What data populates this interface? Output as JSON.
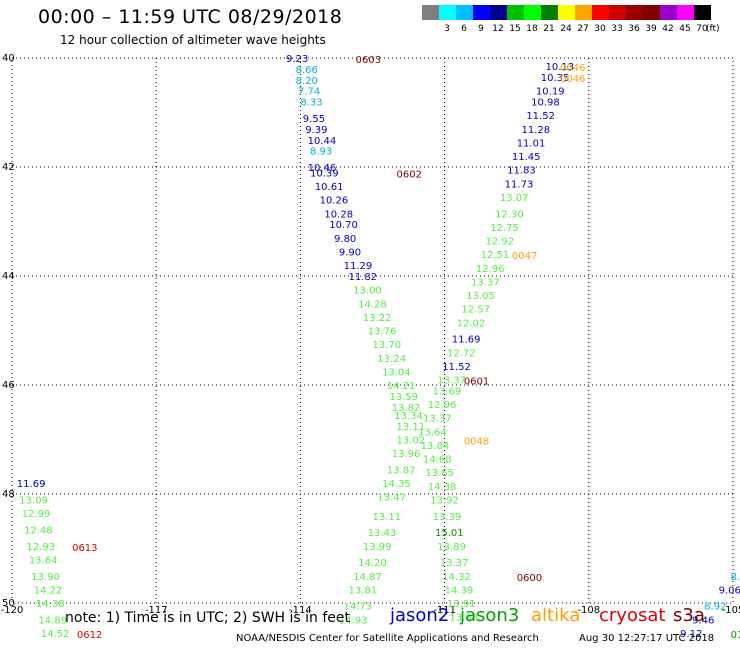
{
  "header": {
    "title": "00:00 – 11:59 UTC 08/29/2018",
    "subtitle": "12 hour collection of altimeter wave heights"
  },
  "scale": {
    "unit": "(ft)",
    "swatches": [
      {
        "label": "",
        "color": "#7f7f7f"
      },
      {
        "label": "3",
        "color": "#00ffff"
      },
      {
        "label": "6",
        "color": "#00bfff"
      },
      {
        "label": "9",
        "color": "#0000ff"
      },
      {
        "label": "12",
        "color": "#00008b"
      },
      {
        "label": "15",
        "color": "#00c000"
      },
      {
        "label": "18",
        "color": "#00ff00"
      },
      {
        "label": "21",
        "color": "#008000"
      },
      {
        "label": "24",
        "color": "#ffff00"
      },
      {
        "label": "27",
        "color": "#ffa500"
      },
      {
        "label": "30",
        "color": "#ff0000"
      },
      {
        "label": "33",
        "color": "#cc0000"
      },
      {
        "label": "36",
        "color": "#990000"
      },
      {
        "label": "39",
        "color": "#7f0000"
      },
      {
        "label": "42",
        "color": "#9900cc"
      },
      {
        "label": "45",
        "color": "#ff00ff"
      },
      {
        "label": "70",
        "color": "#000000"
      }
    ]
  },
  "axes": {
    "lat_ticks": [
      "40",
      "42",
      "44",
      "46",
      "48",
      "50"
    ],
    "lon_ticks": [
      "-120",
      "-117",
      "-114",
      "-111",
      "-108",
      "-105"
    ],
    "lon_range": [
      -120,
      -105
    ],
    "lat_range": [
      40,
      50
    ]
  },
  "colors": {
    "c1": "#00b4d2",
    "c2": "#0000c8",
    "c3": "#55ee44",
    "c4": "#0c9100",
    "lbl_j3": "#7a0000",
    "lbl_s3": "#ff9d00",
    "lbl_cs": "#e00000"
  },
  "observations": [
    {
      "lon": -114.3,
      "lat": 40.0,
      "v": "9.23",
      "c": "c2"
    },
    {
      "lon": -114.1,
      "lat": 40.2,
      "v": "8.66",
      "c": "c1"
    },
    {
      "lon": -114.1,
      "lat": 40.4,
      "v": "8.20",
      "c": "c1"
    },
    {
      "lon": -114.05,
      "lat": 40.6,
      "v": "7.74",
      "c": "c1"
    },
    {
      "lon": -114.0,
      "lat": 40.8,
      "v": "8.33",
      "c": "c1"
    },
    {
      "lon": -113.95,
      "lat": 41.1,
      "v": "9.55",
      "c": "c2"
    },
    {
      "lon": -113.9,
      "lat": 41.3,
      "v": "9.39",
      "c": "c2"
    },
    {
      "lon": -113.85,
      "lat": 41.5,
      "v": "10.44",
      "c": "c2"
    },
    {
      "lon": -113.8,
      "lat": 41.7,
      "v": "8.93",
      "c": "c1"
    },
    {
      "lon": -113.85,
      "lat": 42.0,
      "v": "10.46",
      "c": "c2"
    },
    {
      "lon": -113.8,
      "lat": 42.1,
      "v": "10.39",
      "c": "c2"
    },
    {
      "lon": -113.7,
      "lat": 42.35,
      "v": "10.61",
      "c": "c2"
    },
    {
      "lon": -113.6,
      "lat": 42.6,
      "v": "10.26",
      "c": "c2"
    },
    {
      "lon": -113.5,
      "lat": 42.85,
      "v": "10.28",
      "c": "c2"
    },
    {
      "lon": -113.4,
      "lat": 43.05,
      "v": "10.70",
      "c": "c2"
    },
    {
      "lon": -113.3,
      "lat": 43.3,
      "v": "9.80",
      "c": "c2"
    },
    {
      "lon": -113.2,
      "lat": 43.55,
      "v": "9.90",
      "c": "c2"
    },
    {
      "lon": -113.1,
      "lat": 43.8,
      "v": "11.29",
      "c": "c2"
    },
    {
      "lon": -113.0,
      "lat": 44.0,
      "v": "11.82",
      "c": "c2"
    },
    {
      "lon": -112.9,
      "lat": 44.25,
      "v": "13.00",
      "c": "c3"
    },
    {
      "lon": -112.8,
      "lat": 44.5,
      "v": "14.28",
      "c": "c3"
    },
    {
      "lon": -112.7,
      "lat": 44.75,
      "v": "13.22",
      "c": "c3"
    },
    {
      "lon": -112.6,
      "lat": 45.0,
      "v": "13.76",
      "c": "c3"
    },
    {
      "lon": -112.5,
      "lat": 45.25,
      "v": "13.70",
      "c": "c3"
    },
    {
      "lon": -112.4,
      "lat": 45.5,
      "v": "13.24",
      "c": "c3"
    },
    {
      "lon": -112.3,
      "lat": 45.75,
      "v": "13.04",
      "c": "c3"
    },
    {
      "lon": -112.2,
      "lat": 46.0,
      "v": "14.21",
      "c": "c3"
    },
    {
      "lon": -112.15,
      "lat": 46.2,
      "v": "13.59",
      "c": "c3"
    },
    {
      "lon": -112.1,
      "lat": 46.4,
      "v": "13.82",
      "c": "c3"
    },
    {
      "lon": -112.05,
      "lat": 46.55,
      "v": "13.34",
      "c": "c3"
    },
    {
      "lon": -112.0,
      "lat": 46.75,
      "v": "13.11",
      "c": "c3"
    },
    {
      "lon": -112.0,
      "lat": 47.0,
      "v": "13.02",
      "c": "c3"
    },
    {
      "lon": -112.1,
      "lat": 47.25,
      "v": "13.96",
      "c": "c3"
    },
    {
      "lon": -112.2,
      "lat": 47.55,
      "v": "13.87",
      "c": "c3"
    },
    {
      "lon": -112.3,
      "lat": 47.8,
      "v": "14.35",
      "c": "c3"
    },
    {
      "lon": -112.4,
      "lat": 48.05,
      "v": "13.47",
      "c": "c3"
    },
    {
      "lon": -112.5,
      "lat": 48.4,
      "v": "13.11",
      "c": "c3"
    },
    {
      "lon": -112.6,
      "lat": 48.7,
      "v": "13.43",
      "c": "c3"
    },
    {
      "lon": -112.7,
      "lat": 48.95,
      "v": "13.99",
      "c": "c3"
    },
    {
      "lon": -112.8,
      "lat": 49.25,
      "v": "14.20",
      "c": "c3"
    },
    {
      "lon": -112.9,
      "lat": 49.5,
      "v": "14.87",
      "c": "c3"
    },
    {
      "lon": -113.0,
      "lat": 49.75,
      "v": "13.81",
      "c": "c3"
    },
    {
      "lon": -113.1,
      "lat": 50.05,
      "v": "14.73",
      "c": "c3"
    },
    {
      "lon": -113.2,
      "lat": 50.3,
      "v": "14.93",
      "c": "c3"
    },
    {
      "lon": -108.9,
      "lat": 40.15,
      "v": "10.13",
      "c": "c2"
    },
    {
      "lon": -109.0,
      "lat": 40.35,
      "v": "10.35",
      "c": "c2"
    },
    {
      "lon": -109.1,
      "lat": 40.6,
      "v": "10.19",
      "c": "c2"
    },
    {
      "lon": -109.2,
      "lat": 40.8,
      "v": "10.98",
      "c": "c2"
    },
    {
      "lon": -109.3,
      "lat": 41.05,
      "v": "11.52",
      "c": "c2"
    },
    {
      "lon": -109.4,
      "lat": 41.3,
      "v": "11.28",
      "c": "c2"
    },
    {
      "lon": -109.5,
      "lat": 41.55,
      "v": "11.01",
      "c": "c2"
    },
    {
      "lon": -109.6,
      "lat": 41.8,
      "v": "11.45",
      "c": "c2"
    },
    {
      "lon": -109.7,
      "lat": 42.05,
      "v": "11.83",
      "c": "c2"
    },
    {
      "lon": -109.75,
      "lat": 42.3,
      "v": "11.73",
      "c": "c2"
    },
    {
      "lon": -109.85,
      "lat": 42.55,
      "v": "13.07",
      "c": "c3"
    },
    {
      "lon": -109.95,
      "lat": 42.85,
      "v": "12.30",
      "c": "c3"
    },
    {
      "lon": -110.05,
      "lat": 43.1,
      "v": "12.75",
      "c": "c3"
    },
    {
      "lon": -110.15,
      "lat": 43.35,
      "v": "12.92",
      "c": "c3"
    },
    {
      "lon": -110.25,
      "lat": 43.6,
      "v": "12.51",
      "c": "c3"
    },
    {
      "lon": -110.35,
      "lat": 43.85,
      "v": "12.96",
      "c": "c3"
    },
    {
      "lon": -110.45,
      "lat": 44.1,
      "v": "13.37",
      "c": "c3"
    },
    {
      "lon": -110.55,
      "lat": 44.35,
      "v": "13.05",
      "c": "c3"
    },
    {
      "lon": -110.65,
      "lat": 44.6,
      "v": "12.57",
      "c": "c3"
    },
    {
      "lon": -110.75,
      "lat": 44.85,
      "v": "12.02",
      "c": "c3"
    },
    {
      "lon": -110.85,
      "lat": 45.15,
      "v": "11.69",
      "c": "c2"
    },
    {
      "lon": -110.95,
      "lat": 45.4,
      "v": "12.72",
      "c": "c3"
    },
    {
      "lon": -111.05,
      "lat": 45.65,
      "v": "11.52",
      "c": "c2"
    },
    {
      "lon": -111.15,
      "lat": 45.9,
      "v": "13.37",
      "c": "c3"
    },
    {
      "lon": -111.25,
      "lat": 46.1,
      "v": "13.69",
      "c": "c3"
    },
    {
      "lon": -111.35,
      "lat": 46.35,
      "v": "12.96",
      "c": "c3"
    },
    {
      "lon": -111.45,
      "lat": 46.6,
      "v": "13.37",
      "c": "c3"
    },
    {
      "lon": -111.55,
      "lat": 46.85,
      "v": "13.64",
      "c": "c3"
    },
    {
      "lon": -111.5,
      "lat": 47.1,
      "v": "13.84",
      "c": "c3"
    },
    {
      "lon": -111.45,
      "lat": 47.35,
      "v": "14.68",
      "c": "c3"
    },
    {
      "lon": -111.4,
      "lat": 47.6,
      "v": "13.65",
      "c": "c3"
    },
    {
      "lon": -111.35,
      "lat": 47.85,
      "v": "14.38",
      "c": "c3"
    },
    {
      "lon": -111.3,
      "lat": 48.1,
      "v": "13.92",
      "c": "c3"
    },
    {
      "lon": -111.25,
      "lat": 48.4,
      "v": "13.39",
      "c": "c3"
    },
    {
      "lon": -111.2,
      "lat": 48.7,
      "v": "15.01",
      "c": "c4"
    },
    {
      "lon": -111.15,
      "lat": 48.95,
      "v": "13.89",
      "c": "c3"
    },
    {
      "lon": -111.1,
      "lat": 49.25,
      "v": "13.37",
      "c": "c3"
    },
    {
      "lon": -111.05,
      "lat": 49.5,
      "v": "14.32",
      "c": "c3"
    },
    {
      "lon": -111.0,
      "lat": 49.75,
      "v": "14.39",
      "c": "c3"
    },
    {
      "lon": -110.95,
      "lat": 50.0,
      "v": "13.91",
      "c": "c3"
    },
    {
      "lon": -110.9,
      "lat": 50.25,
      "v": "13.83",
      "c": "c3"
    },
    {
      "lon": -119.9,
      "lat": 47.8,
      "v": "11.69",
      "c": "c2"
    },
    {
      "lon": -119.85,
      "lat": 48.1,
      "v": "13.09",
      "c": "c3"
    },
    {
      "lon": -119.8,
      "lat": 48.35,
      "v": "12.99",
      "c": "c3"
    },
    {
      "lon": -119.75,
      "lat": 48.65,
      "v": "12.48",
      "c": "c3"
    },
    {
      "lon": -119.7,
      "lat": 48.95,
      "v": "12.93",
      "c": "c3"
    },
    {
      "lon": -119.65,
      "lat": 49.2,
      "v": "13.64",
      "c": "c3"
    },
    {
      "lon": -119.6,
      "lat": 49.5,
      "v": "13.90",
      "c": "c3"
    },
    {
      "lon": -119.55,
      "lat": 49.75,
      "v": "14.22",
      "c": "c3"
    },
    {
      "lon": -119.5,
      "lat": 50.0,
      "v": "14.38",
      "c": "c3"
    },
    {
      "lon": -119.45,
      "lat": 50.3,
      "v": "14.89",
      "c": "c3"
    },
    {
      "lon": -119.4,
      "lat": 50.55,
      "v": "14.52",
      "c": "c3"
    },
    {
      "lon": -105.05,
      "lat": 49.5,
      "v": "8.",
      "c": "c1"
    },
    {
      "lon": -105.3,
      "lat": 49.75,
      "v": "9.06",
      "c": "c2"
    },
    {
      "lon": -105.6,
      "lat": 50.05,
      "v": "8.92",
      "c": "c1"
    },
    {
      "lon": -105.85,
      "lat": 50.3,
      "v": "9.46",
      "c": "c2"
    },
    {
      "lon": -106.1,
      "lat": 50.55,
      "v": "9.12",
      "c": "c2"
    }
  ],
  "time_labels": [
    {
      "lon": -112.85,
      "lat": 40.0,
      "t": "0603",
      "c": "lbl_j3"
    },
    {
      "lon": -112.0,
      "lat": 42.1,
      "t": "0602",
      "c": "lbl_j3"
    },
    {
      "lon": -108.6,
      "lat": 40.15,
      "t": "0046",
      "c": "lbl_s3"
    },
    {
      "lon": -108.6,
      "lat": 40.35,
      "t": "0046",
      "c": "lbl_s3"
    },
    {
      "lon": -109.6,
      "lat": 43.6,
      "t": "0047",
      "c": "lbl_s3"
    },
    {
      "lon": -110.6,
      "lat": 47.0,
      "t": "0048",
      "c": "lbl_s3"
    },
    {
      "lon": -110.6,
      "lat": 45.9,
      "t": "0601",
      "c": "lbl_j3"
    },
    {
      "lon": -109.5,
      "lat": 49.5,
      "t": "0600",
      "c": "lbl_j3"
    },
    {
      "lon": -118.75,
      "lat": 48.95,
      "t": "0613",
      "c": "lbl_cs"
    },
    {
      "lon": -118.65,
      "lat": 50.55,
      "t": "0612",
      "c": "lbl_cs"
    },
    {
      "lon": -105.05,
      "lat": 50.55,
      "t": "01",
      "c": "c4"
    }
  ],
  "note": "note:  1) Time is in UTC; 2) SWH is in feet",
  "legend": [
    {
      "name": "jason2",
      "color": "#0000cc"
    },
    {
      "name": "jason3",
      "color": "#00a000"
    },
    {
      "name": "altika",
      "color": "#ff9d00"
    },
    {
      "name": "cryosat",
      "color": "#e00000"
    },
    {
      "name": "s3a",
      "color": "#7a0000"
    }
  ],
  "footer": {
    "source": "NOAA/NESDIS Center for Satellite Applications and Research",
    "timestamp": "Aug 30 12:27:17 UTC 2018"
  }
}
